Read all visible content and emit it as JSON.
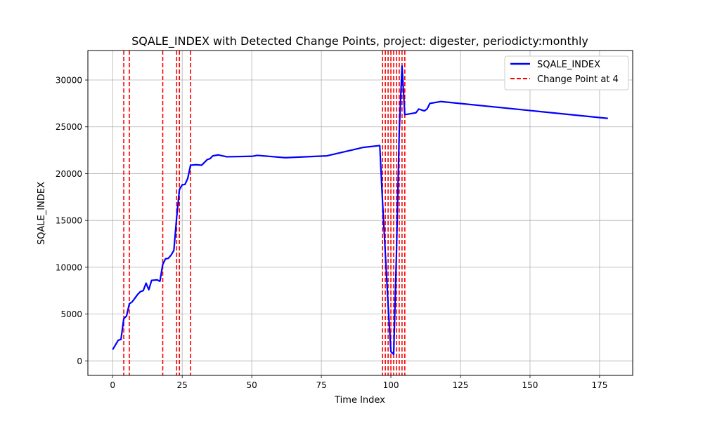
{
  "chart_data": {
    "type": "line",
    "title": "SQALE_INDEX with Detected Change Points, project: digester, periodicty:monthly",
    "xlabel": "Time Index",
    "ylabel": "SQALE_INDEX",
    "xlim": [
      -8.9,
      186.9
    ],
    "ylim": [
      -1550,
      33150
    ],
    "xticks": [
      0,
      25,
      50,
      75,
      100,
      125,
      150,
      175
    ],
    "yticks": [
      0,
      5000,
      10000,
      15000,
      20000,
      25000,
      30000
    ],
    "grid": true,
    "legend_position": "top-right",
    "series": [
      {
        "name": "SQALE_INDEX",
        "color": "#0000ff",
        "x": [
          0,
          1,
          2,
          3,
          4,
          5,
          6,
          7,
          8,
          9,
          10,
          11,
          12,
          13,
          14,
          16,
          17,
          18,
          19,
          20,
          21,
          22,
          23,
          24,
          25,
          26,
          27,
          28,
          30,
          32,
          34,
          35,
          36,
          38,
          41,
          50,
          52,
          62,
          77,
          90,
          96,
          97,
          98,
          99,
          100,
          101,
          102,
          103,
          104,
          105,
          107,
          109,
          110,
          112,
          113,
          114,
          118,
          178
        ],
        "y": [
          1200,
          1700,
          2200,
          2300,
          4500,
          4800,
          6100,
          6300,
          6700,
          7100,
          7400,
          7500,
          8300,
          7600,
          8600,
          8650,
          8500,
          10300,
          10900,
          10950,
          11300,
          11800,
          15300,
          18300,
          18800,
          18850,
          19500,
          20900,
          20950,
          20900,
          21500,
          21600,
          21900,
          22000,
          21800,
          21850,
          21950,
          21700,
          21900,
          22800,
          23000,
          17000,
          11500,
          6000,
          1000,
          700,
          11500,
          24500,
          31500,
          26300,
          26400,
          26500,
          26900,
          26700,
          26900,
          27500,
          27700,
          25900
        ]
      },
      {
        "name": "Change Point at 4",
        "color": "#ff0000",
        "x": [
          4,
          6,
          18,
          23,
          24,
          28,
          97,
          98,
          99,
          100,
          101,
          102,
          103,
          104,
          105
        ]
      }
    ]
  }
}
